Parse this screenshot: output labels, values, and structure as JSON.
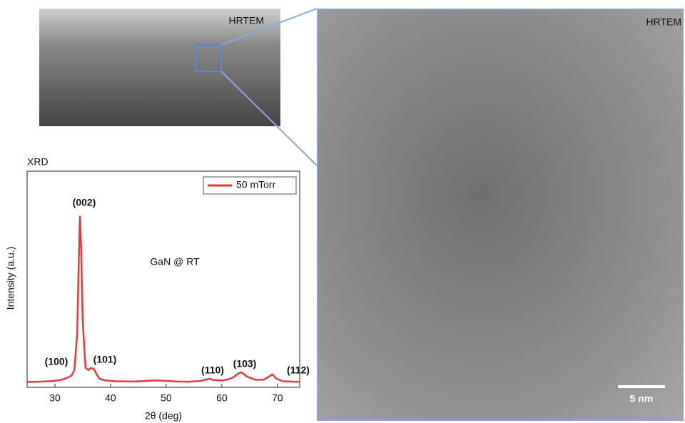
{
  "images": {
    "overview_label": "HRTEM",
    "zoom_label": "HRTEM",
    "scale_bar": "5 nm"
  },
  "chart_data": {
    "type": "line",
    "title": "XRD",
    "x_label": "2θ (deg)",
    "y_label": "Intensity (a.u.)",
    "x": [
      25,
      27,
      29,
      30,
      31,
      32,
      32.5,
      33,
      33.5,
      34,
      34.3,
      34.5,
      34.7,
      35,
      35.5,
      36,
      36.5,
      37,
      37.5,
      38,
      39,
      41,
      44,
      46,
      48,
      50,
      52,
      54,
      56,
      57,
      57.8,
      58.5,
      60,
      61,
      62,
      63,
      63.5,
      64.5,
      66,
      67.5,
      68.5,
      69.1,
      69.8,
      71,
      73,
      74
    ],
    "series": [
      {
        "name": "50 mTorr",
        "color": "#e8383d",
        "values": [
          2.5,
          2.6,
          2.8,
          3,
          3.4,
          4.2,
          4.8,
          5.5,
          8,
          25,
          60,
          79,
          65,
          30,
          9,
          8,
          9,
          8.5,
          6,
          4,
          3.2,
          2.8,
          2.7,
          2.9,
          3.2,
          3,
          2.7,
          2.6,
          2.9,
          3.5,
          4,
          3.4,
          3.2,
          3.6,
          4.5,
          6.5,
          7,
          5,
          3.5,
          3.5,
          5,
          6,
          4,
          2.8,
          2.6,
          2.5
        ]
      }
    ],
    "xlim": [
      25,
      74
    ],
    "ylim": [
      0,
      100
    ],
    "xticks": [
      30,
      40,
      50,
      60,
      70
    ],
    "legend": "upper right",
    "annotations": [
      "(100)",
      "(002)",
      "(101)",
      "(110)",
      "(103)",
      "(112)",
      "GaN @ RT"
    ]
  }
}
